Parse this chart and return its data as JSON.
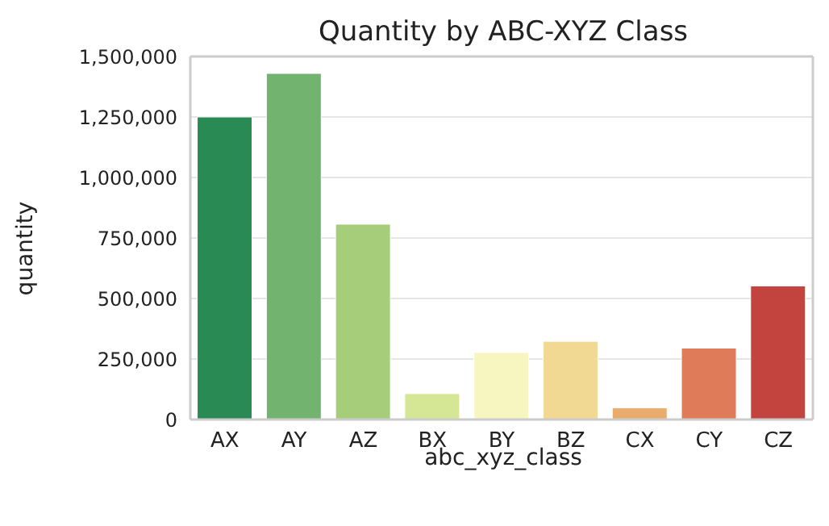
{
  "chart_data": {
    "type": "bar",
    "title": "Quantity by ABC-XYZ Class",
    "xlabel": "abc_xyz_class",
    "ylabel": "quantity",
    "categories": [
      "AX",
      "AY",
      "AZ",
      "BX",
      "BY",
      "BZ",
      "CX",
      "CY",
      "CZ"
    ],
    "values": [
      1250000,
      1430000,
      807000,
      107000,
      277000,
      323000,
      48000,
      295000,
      552000
    ],
    "colors": [
      "#2a8a53",
      "#72b46f",
      "#a6cd7a",
      "#d5e694",
      "#f8f6c0",
      "#f1d994",
      "#eaac6c",
      "#e07b5a",
      "#c3443f"
    ],
    "ylim": [
      0,
      1500000
    ],
    "yticks": [
      0,
      {
        "value": 250000,
        "label": "250,000"
      },
      {
        "value": 500000,
        "label": "500,000"
      },
      {
        "value": 750000,
        "label": "750,000"
      },
      {
        "value": 1000000,
        "label": "1,000,000"
      },
      {
        "value": 1250000,
        "label": "1,250,000"
      },
      {
        "value": 1500000,
        "label": "1,500,000"
      }
    ],
    "grid": "y"
  }
}
